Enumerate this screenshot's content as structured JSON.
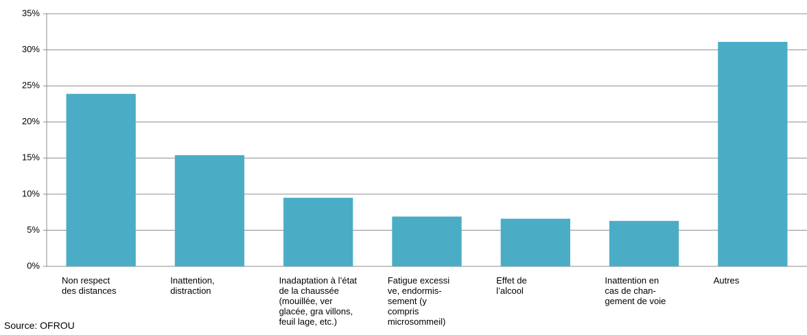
{
  "chart_data": {
    "type": "bar",
    "source": "Source: OFROU",
    "categories": [
      "Non respect\ndes distances",
      "Inattention,\ndistraction",
      "Inadaptation à l’état\nde la chaussée\n(mouillée, ver\nglacée, gra villons,\nfeuil lage, etc.)",
      "Fatigue excessi\nve, endormis-\nsement (y\ncompris\nmicrosommeil)",
      "Effet de\nl’alcool",
      "Inattention en\ncas de chan-\ngement de voie",
      "Autres"
    ],
    "values": [
      23.9,
      15.4,
      9.5,
      6.9,
      6.6,
      6.3,
      31.1
    ],
    "color": "#4bacc6",
    "ylim": [
      0,
      35
    ],
    "yticks": [
      {
        "value": 0,
        "label": "0%"
      },
      {
        "value": 5,
        "label": "5%"
      },
      {
        "value": 10,
        "label": "10%"
      },
      {
        "value": 15,
        "label": "15%"
      },
      {
        "value": 20,
        "label": "20%"
      },
      {
        "value": 25,
        "label": "25%"
      },
      {
        "value": 30,
        "label": "30%"
      },
      {
        "value": 35,
        "label": "35%"
      }
    ],
    "grid": true
  }
}
